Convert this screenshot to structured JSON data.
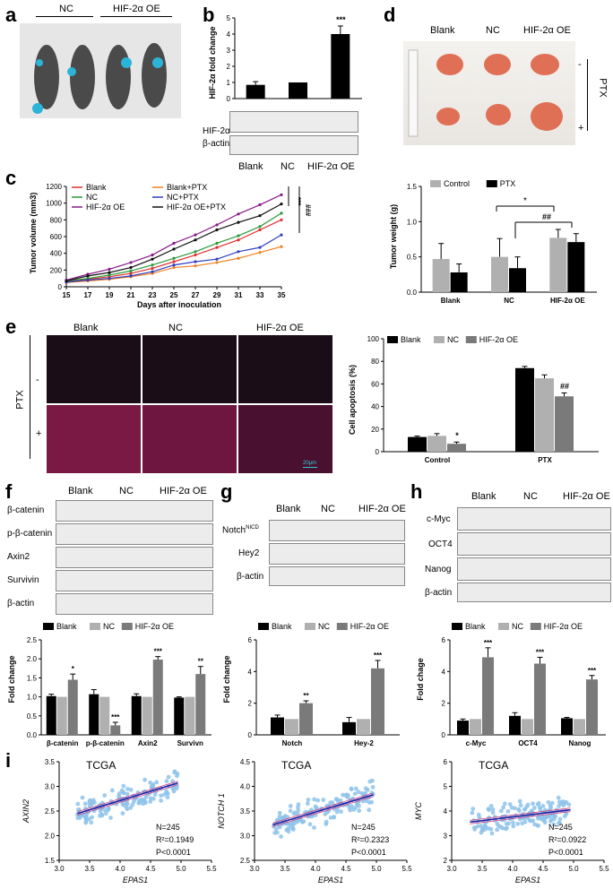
{
  "panels": {
    "a": {
      "letter": "a",
      "groups": [
        "NC",
        "HIF-2α OE"
      ]
    },
    "b": {
      "letter": "b",
      "ylabel": "HIF-2α fold change",
      "sig": "***",
      "blot_rows": [
        "HIF-2α",
        "β-actin"
      ],
      "xlabels": [
        "Blank",
        "NC",
        "HIF-2α OE"
      ],
      "chart_data": {
        "type": "bar",
        "categories": [
          "Blank",
          "NC",
          "HIF-2α OE"
        ],
        "values": [
          0.85,
          1.0,
          4.0
        ],
        "errors": [
          0.2,
          0.0,
          0.5
        ],
        "ylim": [
          0,
          5
        ],
        "yticks": [
          "0",
          "1",
          "2",
          "3",
          "4",
          "5"
        ]
      }
    },
    "c": {
      "letter": "c",
      "ylabel": "Tumor volume (mm3)",
      "xlabel": "Days after inoculation",
      "sig1": "***",
      "sig2": "###",
      "chart_data": {
        "type": "line",
        "x": [
          15,
          17,
          19,
          21,
          23,
          25,
          27,
          29,
          31,
          33,
          35
        ],
        "xticks": [
          "15",
          "17",
          "19",
          "21",
          "23",
          "25",
          "27",
          "29",
          "31",
          "33",
          "35"
        ],
        "yticks": [
          "0",
          "200",
          "400",
          "600",
          "800",
          "1000",
          "1200"
        ],
        "ylim": [
          0,
          1200
        ],
        "series": [
          {
            "name": "Blank",
            "color": "#e03030",
            "values": [
              60,
              90,
              120,
              160,
              220,
              300,
              380,
              470,
              560,
              680,
              800
            ]
          },
          {
            "name": "NC",
            "color": "#2a9a3a",
            "values": [
              70,
              100,
              140,
              190,
              260,
              340,
              420,
              520,
              610,
              720,
              880
            ]
          },
          {
            "name": "HIF-2α OE",
            "color": "#8a1a8a",
            "values": [
              80,
              150,
              210,
              290,
              380,
              520,
              620,
              740,
              870,
              980,
              1100
            ]
          },
          {
            "name": "Blank+PTX",
            "color": "#f08020",
            "values": [
              50,
              70,
              90,
              120,
              160,
              230,
              250,
              290,
              340,
              410,
              480
            ]
          },
          {
            "name": "NC+PTX",
            "color": "#3040c0",
            "values": [
              55,
              80,
              100,
              130,
              180,
              260,
              300,
              330,
              420,
              470,
              620
            ]
          },
          {
            "name": "HIF-2α OE+PTX",
            "color": "#111111",
            "values": [
              70,
              130,
              170,
              230,
              330,
              450,
              560,
              680,
              770,
              850,
              990
            ]
          }
        ]
      }
    },
    "d": {
      "letter": "d",
      "groups": [
        "Blank",
        "NC",
        "HIF-2α OE"
      ],
      "ptx": "PTX",
      "minus": "-",
      "plus": "+",
      "ylabel": "Tumor weight (g)",
      "sig1": "*",
      "sig2": "##",
      "chart_data": {
        "type": "bar",
        "categories": [
          "Blank",
          "NC",
          "HIF-2α OE"
        ],
        "yticks": [
          "0.0",
          "0.5",
          "1.0",
          "1.5"
        ],
        "ylim": [
          0,
          1.5
        ],
        "series": [
          {
            "name": "Control",
            "color": "#b0b0b0",
            "values": [
              0.47,
              0.5,
              0.77
            ],
            "errors": [
              0.22,
              0.26,
              0.12
            ]
          },
          {
            "name": "PTX",
            "color": "#000000",
            "values": [
              0.28,
              0.34,
              0.71
            ],
            "errors": [
              0.12,
              0.16,
              0.12
            ]
          }
        ]
      }
    },
    "e": {
      "letter": "e",
      "cols": [
        "Blank",
        "NC",
        "HIF-2α OE"
      ],
      "ptx": "PTX",
      "minus": "-",
      "plus": "+",
      "scale": "20μm",
      "ylabel": "Cell apoptosis (%)",
      "sig1": "*",
      "sig2": "##",
      "chart_data": {
        "type": "bar",
        "categories": [
          "Control",
          "PTX"
        ],
        "yticks": [
          "0",
          "20",
          "40",
          "60",
          "80",
          "100"
        ],
        "ylim": [
          0,
          100
        ],
        "series": [
          {
            "name": "Blank",
            "color": "#000000",
            "values": [
              13,
              74
            ],
            "errors": [
              0.8,
              1.5
            ]
          },
          {
            "name": "NC",
            "color": "#b0b0b0",
            "values": [
              14,
              65
            ],
            "errors": [
              2,
              3
            ]
          },
          {
            "name": "HIF-2α OE",
            "color": "#7a7a7a",
            "values": [
              7,
              49
            ],
            "errors": [
              1.5,
              3
            ]
          }
        ]
      }
    },
    "f": {
      "letter": "f",
      "cols": [
        "Blank",
        "NC",
        "HIF-2α OE"
      ],
      "rows": [
        "β-catenin",
        "p-β-catenin",
        "Axin2",
        "Survivin",
        "β-actin"
      ],
      "ylabel": "Fold change",
      "sigs": [
        "*",
        "***",
        "***",
        "**"
      ],
      "chart_data": {
        "type": "bar",
        "categories": [
          "β-catenin",
          "p-β-catenin",
          "Axin2",
          "Survivn"
        ],
        "yticks": [
          "0.0",
          "0.5",
          "1.0",
          "1.5",
          "2.0",
          "2.5"
        ],
        "ylim": [
          0,
          2.5
        ],
        "series": [
          {
            "name": "Blank",
            "color": "#000000",
            "values": [
              1.02,
              1.07,
              1.02,
              0.98
            ],
            "errors": [
              0.05,
              0.12,
              0.06,
              0.02
            ]
          },
          {
            "name": "NC",
            "color": "#b0b0b0",
            "values": [
              1.0,
              1.0,
              1.0,
              1.0
            ],
            "errors": [
              0,
              0,
              0,
              0
            ]
          },
          {
            "name": "HIF-2α OE",
            "color": "#7a7a7a",
            "values": [
              1.45,
              0.25,
              1.98,
              1.6
            ],
            "errors": [
              0.15,
              0.08,
              0.08,
              0.2
            ]
          }
        ]
      }
    },
    "g": {
      "letter": "g",
      "cols": [
        "Blank",
        "NC",
        "HIF-2α OE"
      ],
      "rows": [
        "Notch",
        "Hey2",
        "β-actin"
      ],
      "nicd": "NICD",
      "ylabel": "Fold change",
      "sigs": [
        "**",
        "***"
      ],
      "chart_data": {
        "type": "bar",
        "categories": [
          "Notch",
          "Hey-2"
        ],
        "yticks": [
          "0",
          "2",
          "4",
          "6"
        ],
        "ylim": [
          0,
          6
        ],
        "series": [
          {
            "name": "Blank",
            "color": "#000000",
            "values": [
              1.1,
              0.8
            ],
            "errors": [
              0.15,
              0.3
            ]
          },
          {
            "name": "NC",
            "color": "#b0b0b0",
            "values": [
              1.0,
              1.0
            ],
            "errors": [
              0,
              0
            ]
          },
          {
            "name": "HIF-2α OE",
            "color": "#7a7a7a",
            "values": [
              2.0,
              4.2
            ],
            "errors": [
              0.15,
              0.5
            ]
          }
        ]
      }
    },
    "h": {
      "letter": "h",
      "cols": [
        "Blank",
        "NC",
        "HIF-2α OE"
      ],
      "rows": [
        "c-Myc",
        "OCT4",
        "Nanog",
        "β-actin"
      ],
      "ylabel": "Fold chage",
      "sigs": [
        "***",
        "***",
        "***"
      ],
      "chart_data": {
        "type": "bar",
        "categories": [
          "c-Myc",
          "OCT4",
          "Nanog"
        ],
        "yticks": [
          "0",
          "2",
          "4",
          "6"
        ],
        "ylim": [
          0,
          6
        ],
        "series": [
          {
            "name": "Blank",
            "color": "#000000",
            "values": [
              0.9,
              1.2,
              1.05
            ],
            "errors": [
              0.1,
              0.2,
              0.05
            ]
          },
          {
            "name": "NC",
            "color": "#b0b0b0",
            "values": [
              1.0,
              1.0,
              1.0
            ],
            "errors": [
              0,
              0,
              0
            ]
          },
          {
            "name": "HIF-2α OE",
            "color": "#7a7a7a",
            "values": [
              4.9,
              4.5,
              3.5
            ],
            "errors": [
              0.6,
              0.4,
              0.25
            ]
          }
        ]
      }
    },
    "i": {
      "letter": "i",
      "title": "TCGA",
      "xlabel": "EPAS1",
      "plots": [
        {
          "ylabel": "AXIN2",
          "n": "N=245",
          "r2": "R²=0.1949",
          "p": "P<0.0001",
          "xticks": [
            "3.0",
            "3.5",
            "4.0",
            "4.5",
            "5.0",
            "5.5"
          ],
          "yticks": [
            "1.5",
            "2.0",
            "2.5",
            "3.0",
            "3.5"
          ],
          "xlim": [
            3.0,
            5.5
          ],
          "ylim": [
            1.5,
            3.5
          ],
          "fit": [
            [
              3.3,
              2.45
            ],
            [
              4.95,
              3.07
            ]
          ]
        },
        {
          "ylabel": "NOTCH 1",
          "n": "N=245",
          "r2": "R²=0.2323",
          "p": "P<0.0001",
          "xticks": [
            "3.0",
            "3.5",
            "4.0",
            "4.5",
            "5.0",
            "5.5"
          ],
          "yticks": [
            "2.5",
            "3.0",
            "3.5",
            "4.0",
            "4.5"
          ],
          "xlim": [
            3.0,
            5.5
          ],
          "ylim": [
            2.5,
            4.5
          ],
          "fit": [
            [
              3.3,
              3.22
            ],
            [
              4.95,
              3.83
            ]
          ]
        },
        {
          "ylabel": "MYC",
          "n": "N=245",
          "r2": "R²=0.0922",
          "p": "P<0.0001",
          "xticks": [
            "3.0",
            "3.5",
            "4.0",
            "4.5",
            "5.0",
            "5.5"
          ],
          "yticks": [
            "2",
            "3",
            "4",
            "5",
            "6"
          ],
          "xlim": [
            3.0,
            5.5
          ],
          "ylim": [
            2,
            6
          ],
          "fit": [
            [
              3.3,
              3.55
            ],
            [
              4.95,
              4.05
            ]
          ]
        }
      ]
    }
  }
}
